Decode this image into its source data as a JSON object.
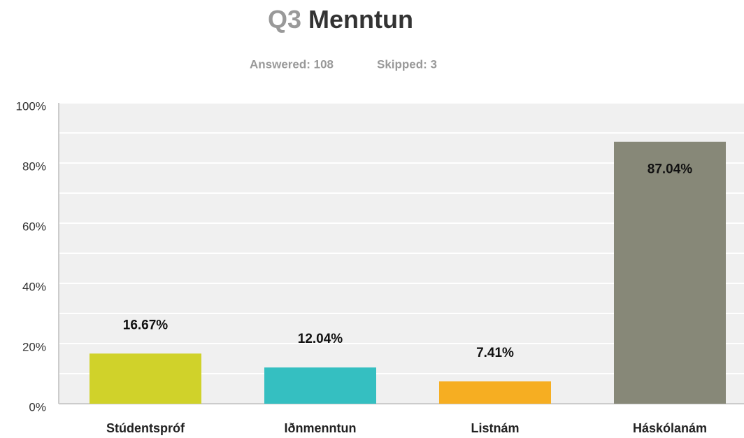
{
  "chart_data": {
    "type": "bar",
    "question_number": "Q3",
    "title": "Menntun",
    "answered": "Answered: 108",
    "skipped": "Skipped: 3",
    "categories": [
      "Stúdentspróf",
      "Iðnmenntun",
      "Listnám",
      "Háskólanám"
    ],
    "values": [
      16.67,
      12.04,
      7.41,
      87.04
    ],
    "value_labels": [
      "16.67%",
      "12.04%",
      "7.41%",
      "87.04%"
    ],
    "colors": [
      "#d0d22a",
      "#35bfc1",
      "#f6ae22",
      "#878878"
    ],
    "ylim": [
      0,
      100
    ],
    "yticks": [
      {
        "value": 0,
        "label": "0%"
      },
      {
        "value": 20,
        "label": "20%"
      },
      {
        "value": 40,
        "label": "40%"
      },
      {
        "value": 60,
        "label": "60%"
      },
      {
        "value": 80,
        "label": "80%"
      },
      {
        "value": 100,
        "label": "100%"
      }
    ],
    "minor_yticks": [
      10,
      30,
      50,
      70,
      90
    ],
    "grid": true
  }
}
